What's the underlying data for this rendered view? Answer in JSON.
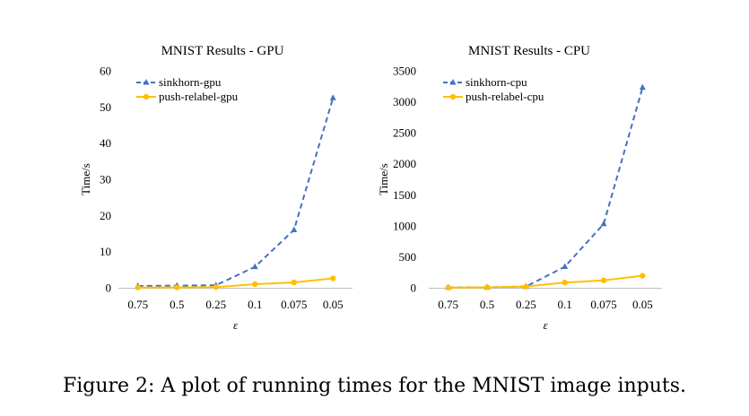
{
  "caption": "Figure 2: A plot of running times for the MNIST image inputs.",
  "colors": {
    "sinkhorn": "#4472C4",
    "push_relabel": "#FFC000",
    "axis": "#bfbfbf"
  },
  "chart_data": [
    {
      "type": "line",
      "title": "MNIST Results - GPU",
      "xlabel": "ε",
      "ylabel": "Time/s",
      "categories": [
        "0.75",
        "0.5",
        "0.25",
        "0.1",
        "0.075",
        "0.05"
      ],
      "ylim": [
        0,
        60
      ],
      "yticks": [
        "0",
        "10",
        "20",
        "30",
        "40",
        "50",
        "60"
      ],
      "grid": false,
      "legend": "top-left",
      "series": [
        {
          "name": "sinkhorn-gpu",
          "marker": "triangle",
          "style": "dashed",
          "values": [
            0.5,
            0.6,
            0.7,
            5.8,
            16,
            52.5
          ]
        },
        {
          "name": "push-relabel-gpu",
          "marker": "circle",
          "style": "solid",
          "values": [
            0.1,
            0.1,
            0.2,
            1.0,
            1.5,
            2.6
          ]
        }
      ]
    },
    {
      "type": "line",
      "title": "MNIST Results - CPU",
      "xlabel": "ε",
      "ylabel": "Time/s",
      "categories": [
        "0.75",
        "0.5",
        "0.25",
        "0.1",
        "0.075",
        "0.05"
      ],
      "ylim": [
        0,
        3500
      ],
      "yticks": [
        "0",
        "500",
        "1000",
        "1500",
        "2000",
        "2500",
        "3000",
        "3500"
      ],
      "grid": false,
      "legend": "top-left",
      "series": [
        {
          "name": "sinkhorn-cpu",
          "marker": "triangle",
          "style": "dashed",
          "values": [
            5,
            8,
            20,
            340,
            1030,
            3230
          ]
        },
        {
          "name": "push-relabel-cpu",
          "marker": "circle",
          "style": "solid",
          "values": [
            3,
            8,
            20,
            85,
            120,
            195
          ]
        }
      ]
    }
  ]
}
